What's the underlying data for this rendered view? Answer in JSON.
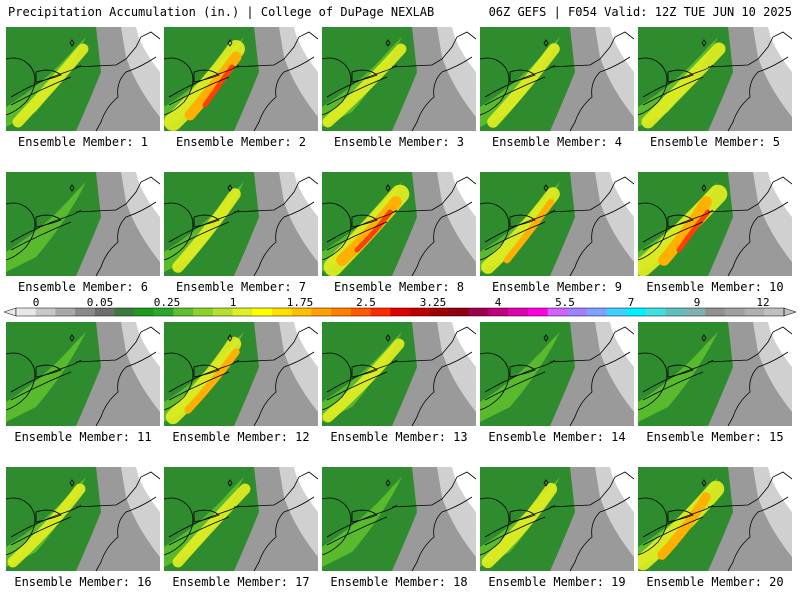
{
  "header": {
    "left": "Precipitation Accumulation (in.) | College of DuPage NEXLAB",
    "right": "06Z GEFS | F054 Valid: 12Z TUE JUN 10 2025"
  },
  "member_label_prefix": "Ensemble Member:",
  "members": [
    {
      "number": 1,
      "intensity": 0.35
    },
    {
      "number": 2,
      "intensity": 0.85
    },
    {
      "number": 3,
      "intensity": 0.35
    },
    {
      "number": 4,
      "intensity": 0.4
    },
    {
      "number": 5,
      "intensity": 0.5
    },
    {
      "number": 6,
      "intensity": 0.3
    },
    {
      "number": 7,
      "intensity": 0.4
    },
    {
      "number": 8,
      "intensity": 0.9
    },
    {
      "number": 9,
      "intensity": 0.55
    },
    {
      "number": 10,
      "intensity": 0.9
    },
    {
      "number": 11,
      "intensity": 0.3
    },
    {
      "number": 12,
      "intensity": 0.6
    },
    {
      "number": 13,
      "intensity": 0.35
    },
    {
      "number": 14,
      "intensity": 0.3
    },
    {
      "number": 15,
      "intensity": 0.2
    },
    {
      "number": 16,
      "intensity": 0.35
    },
    {
      "number": 17,
      "intensity": 0.35
    },
    {
      "number": 18,
      "intensity": 0.3
    },
    {
      "number": 19,
      "intensity": 0.45
    },
    {
      "number": 20,
      "intensity": 0.75
    }
  ],
  "colorbar": {
    "labels": [
      "0",
      "0.05",
      "0.25",
      "1",
      "1.75",
      "2.5",
      "3.25",
      "4",
      "5.5",
      "7",
      "9",
      "12"
    ],
    "colors": [
      "#e8e8e8",
      "#c8c8c8",
      "#a8a8a8",
      "#8a8a8a",
      "#6e6e6e",
      "#3c7a3c",
      "#1f9a1f",
      "#2aa82a",
      "#60c030",
      "#8cd22a",
      "#b8e030",
      "#e0f020",
      "#ffff00",
      "#ffe000",
      "#ffc000",
      "#ffa000",
      "#ff8000",
      "#ff5a00",
      "#ff2a00",
      "#e00000",
      "#c00000",
      "#a00000",
      "#900010",
      "#a00050",
      "#c00080",
      "#e000b0",
      "#ff00e0",
      "#d060ff",
      "#a080ff",
      "#80a0ff",
      "#40d0ff",
      "#00f0ff",
      "#40e0e0",
      "#60c0c0",
      "#80b0b0",
      "#909090",
      "#a0a0a0",
      "#b0b0b0",
      "#c0c0c0"
    ]
  }
}
